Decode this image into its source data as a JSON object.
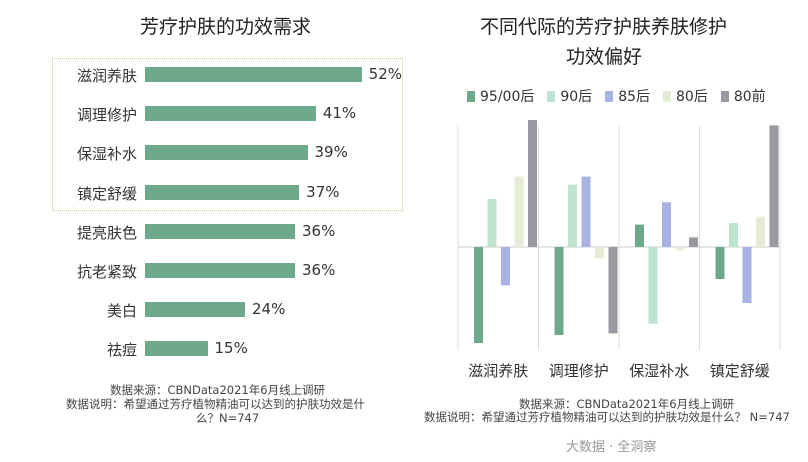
{
  "chart_data": [
    {
      "type": "bar",
      "orientation": "horizontal",
      "title": "芳疗护肤的功效需求",
      "categories": [
        "滋润养肤",
        "调理修护",
        "保湿补水",
        "镇定舒缓",
        "提亮肤色",
        "抗老紧致",
        "美白",
        "祛痘"
      ],
      "values": [
        52,
        41,
        39,
        37,
        36,
        36,
        24,
        15
      ],
      "value_labels": [
        "52%",
        "41%",
        "39%",
        "37%",
        "36%",
        "36%",
        "24%",
        "15%"
      ],
      "xlim": [
        0,
        60
      ],
      "bar_color": "#6fa98b",
      "highlight_box_color": "#c8c890"
    },
    {
      "type": "bar",
      "title_lines": [
        "不同代际的芳疗护肤养肤修护",
        "功效偏好"
      ],
      "categories": [
        "滋润养肤",
        "调理修护",
        "保湿补水",
        "镇定舒缓"
      ],
      "series": [
        {
          "name": "95/00后",
          "color": "#6fa98b",
          "values": [
            -0.6,
            -0.55,
            0.14,
            -0.2
          ]
        },
        {
          "name": "90后",
          "color": "#bfe2d2",
          "values": [
            0.3,
            0.39,
            -0.48,
            0.15
          ]
        },
        {
          "name": "85后",
          "color": "#a9b3e3",
          "values": [
            -0.24,
            0.44,
            0.28,
            -0.35
          ]
        },
        {
          "name": "80后",
          "color": "#e5ecd5",
          "values": [
            0.44,
            -0.07,
            -0.02,
            0.19
          ]
        },
        {
          "name": "80前",
          "color": "#9a98a0",
          "values": [
            0.81,
            -0.54,
            0.06,
            0.76
          ]
        }
      ],
      "ylim": [
        -1,
        1
      ],
      "axis": false,
      "ticks": false
    }
  ],
  "notes": {
    "left": [
      "数据来源：CBNData2021年6月线上调研",
      "数据说明：希望通过芳疗植物精油可以达到的护肤功效是什",
      "么？N=747"
    ],
    "right": [
      "数据来源：CBNData2021年6月线上调研",
      "数据说明：希望通过芳疗植物精油可以达到的护肤功效是什么？ N=747"
    ]
  },
  "watermark": "大数据 · 全洞察"
}
